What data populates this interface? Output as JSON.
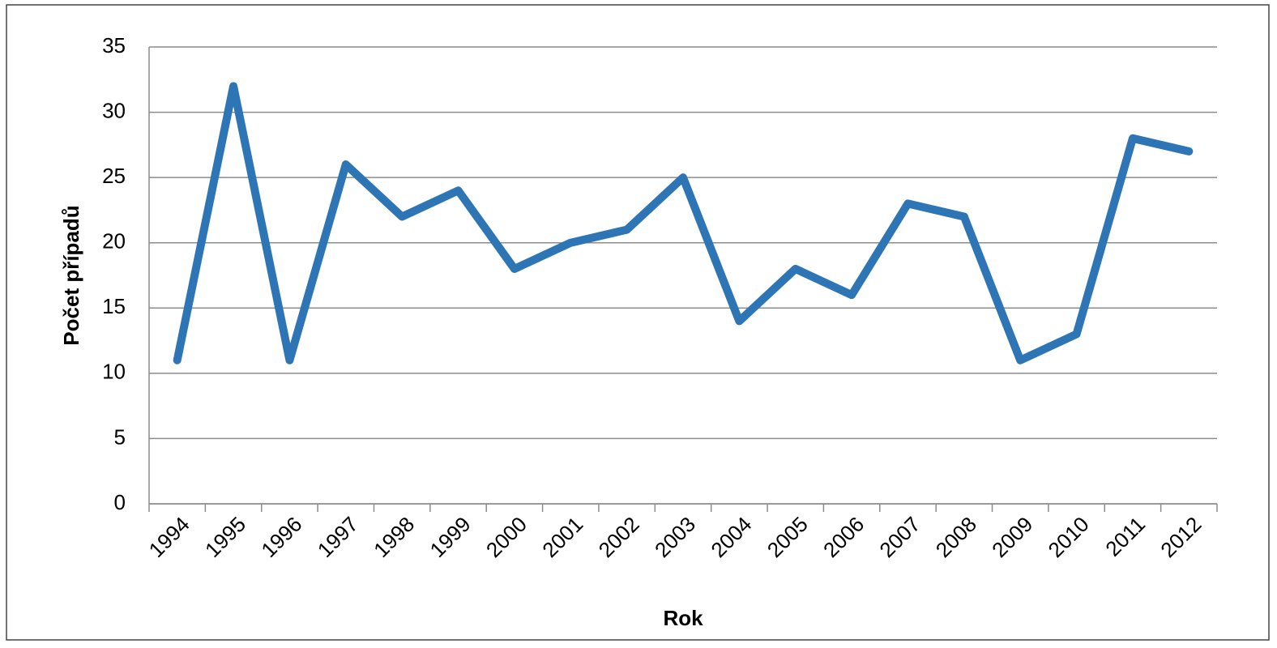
{
  "chart_data": {
    "type": "line",
    "x_label": "Rok",
    "y_label": "Počet případů",
    "categories": [
      "1994",
      "1995",
      "1996",
      "1997",
      "1998",
      "1999",
      "2000",
      "2001",
      "2002",
      "2003",
      "2004",
      "2005",
      "2006",
      "2007",
      "2008",
      "2009",
      "2010",
      "2011",
      "2012"
    ],
    "values": [
      11,
      32,
      11,
      26,
      22,
      24,
      18,
      20,
      21,
      25,
      14,
      18,
      16,
      23,
      22,
      11,
      13,
      28,
      27
    ],
    "color": "#2e75b6",
    "ylim": [
      0,
      35
    ],
    "yticks": [
      0,
      5,
      10,
      15,
      20,
      25,
      30,
      35
    ],
    "grid": true
  }
}
